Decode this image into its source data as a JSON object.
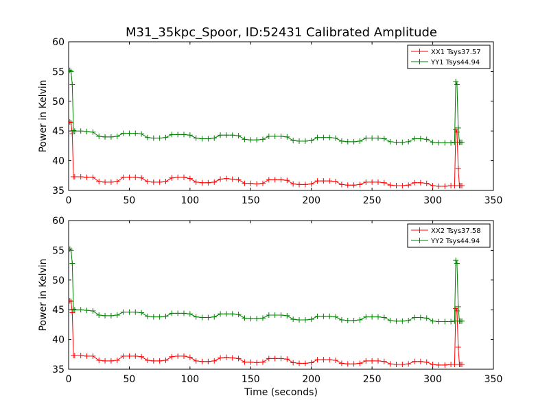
{
  "figure": {
    "title": "M31_35kpc_Spoor, ID:52431 Calibrated Amplitude"
  },
  "colors": {
    "xx": "#ff0000",
    "yy": "#008000",
    "axes": "#000000",
    "background": "#ffffff"
  },
  "chart_data": [
    {
      "type": "line",
      "title": "M31_35kpc_Spoor, ID:52431 Calibrated Amplitude",
      "xlabel": "",
      "ylabel": "Power in Kelvin",
      "xlim": [
        0,
        350
      ],
      "ylim": [
        35,
        60
      ],
      "x_ticks": [
        0,
        50,
        100,
        150,
        200,
        250,
        300,
        350
      ],
      "y_ticks": [
        35,
        40,
        45,
        50,
        55,
        60
      ],
      "grid": false,
      "legend_position": "top-right",
      "marker": "+",
      "series": [
        {
          "name": "XX1 Tsys37.57",
          "color": "#ff0000",
          "x": [
            1,
            2,
            3,
            4,
            5,
            10,
            15,
            20,
            25,
            30,
            35,
            40,
            45,
            50,
            55,
            60,
            65,
            70,
            75,
            80,
            85,
            90,
            95,
            100,
            105,
            110,
            115,
            120,
            125,
            130,
            135,
            140,
            145,
            150,
            155,
            160,
            165,
            170,
            175,
            180,
            185,
            190,
            195,
            200,
            205,
            210,
            215,
            220,
            225,
            230,
            235,
            240,
            245,
            250,
            255,
            260,
            265,
            270,
            275,
            280,
            285,
            290,
            295,
            300,
            305,
            310,
            315,
            318,
            319,
            320,
            321,
            322,
            323,
            324
          ],
          "y": [
            46.5,
            46.4,
            44.5,
            37.3,
            37.3,
            37.3,
            37.2,
            37.2,
            36.5,
            36.4,
            36.4,
            36.5,
            37.2,
            37.2,
            37.2,
            37.1,
            36.5,
            36.4,
            36.4,
            36.5,
            37.1,
            37.2,
            37.2,
            37.0,
            36.4,
            36.3,
            36.3,
            36.4,
            36.9,
            37.0,
            36.9,
            36.8,
            36.2,
            36.2,
            36.1,
            36.2,
            36.8,
            36.8,
            36.8,
            36.7,
            36.1,
            36.0,
            36.0,
            36.1,
            36.6,
            36.6,
            36.6,
            36.5,
            36.0,
            35.9,
            35.9,
            36.0,
            36.4,
            36.4,
            36.4,
            36.3,
            35.9,
            35.8,
            35.8,
            35.9,
            36.3,
            36.3,
            36.2,
            35.8,
            35.7,
            35.7,
            35.8,
            35.8,
            45.2,
            44.8,
            38.7,
            35.8,
            35.8,
            35.8
          ]
        },
        {
          "name": "YY1 Tsys44.94",
          "color": "#008000",
          "x": [
            1,
            2,
            3,
            4,
            5,
            10,
            15,
            20,
            25,
            30,
            35,
            40,
            45,
            50,
            55,
            60,
            65,
            70,
            75,
            80,
            85,
            90,
            95,
            100,
            105,
            110,
            115,
            120,
            125,
            130,
            135,
            140,
            145,
            150,
            155,
            160,
            165,
            170,
            175,
            180,
            185,
            190,
            195,
            200,
            205,
            210,
            215,
            220,
            225,
            230,
            235,
            240,
            245,
            250,
            255,
            260,
            265,
            270,
            275,
            280,
            285,
            290,
            295,
            300,
            305,
            310,
            315,
            318,
            319,
            320,
            321,
            322,
            323,
            324
          ],
          "y": [
            55.2,
            55.0,
            52.8,
            45.1,
            45.0,
            45.0,
            44.9,
            44.8,
            44.1,
            44.0,
            44.0,
            44.1,
            44.6,
            44.6,
            44.6,
            44.5,
            43.9,
            43.8,
            43.8,
            43.9,
            44.4,
            44.4,
            44.4,
            44.3,
            43.8,
            43.7,
            43.7,
            43.8,
            44.3,
            44.3,
            44.3,
            44.2,
            43.6,
            43.5,
            43.5,
            43.6,
            44.1,
            44.1,
            44.1,
            44.0,
            43.4,
            43.3,
            43.3,
            43.4,
            43.9,
            43.9,
            43.9,
            43.8,
            43.3,
            43.2,
            43.2,
            43.3,
            43.8,
            43.8,
            43.8,
            43.7,
            43.2,
            43.1,
            43.1,
            43.2,
            43.7,
            43.7,
            43.6,
            43.1,
            43.0,
            43.0,
            43.0,
            43.1,
            53.3,
            52.8,
            45.5,
            43.1,
            43.1,
            43.1
          ]
        }
      ]
    },
    {
      "type": "line",
      "title": "",
      "xlabel": "Time (seconds)",
      "ylabel": "Power in Kelvin",
      "xlim": [
        0,
        350
      ],
      "ylim": [
        35,
        60
      ],
      "x_ticks": [
        0,
        50,
        100,
        150,
        200,
        250,
        300,
        350
      ],
      "y_ticks": [
        35,
        40,
        45,
        50,
        55,
        60
      ],
      "grid": false,
      "legend_position": "top-right",
      "marker": "+",
      "series": [
        {
          "name": "XX2 Tsys37.58",
          "color": "#ff0000",
          "x": [
            1,
            2,
            3,
            4,
            5,
            10,
            15,
            20,
            25,
            30,
            35,
            40,
            45,
            50,
            55,
            60,
            65,
            70,
            75,
            80,
            85,
            90,
            95,
            100,
            105,
            110,
            115,
            120,
            125,
            130,
            135,
            140,
            145,
            150,
            155,
            160,
            165,
            170,
            175,
            180,
            185,
            190,
            195,
            200,
            205,
            210,
            215,
            220,
            225,
            230,
            235,
            240,
            245,
            250,
            255,
            260,
            265,
            270,
            275,
            280,
            285,
            290,
            295,
            300,
            305,
            310,
            315,
            318,
            319,
            320,
            321,
            322,
            323,
            324
          ],
          "y": [
            46.5,
            46.4,
            44.5,
            37.3,
            37.3,
            37.3,
            37.2,
            37.2,
            36.5,
            36.4,
            36.4,
            36.5,
            37.2,
            37.2,
            37.2,
            37.1,
            36.5,
            36.4,
            36.4,
            36.5,
            37.1,
            37.2,
            37.2,
            37.0,
            36.4,
            36.3,
            36.3,
            36.4,
            36.9,
            37.0,
            36.9,
            36.8,
            36.2,
            36.2,
            36.1,
            36.2,
            36.8,
            36.8,
            36.8,
            36.7,
            36.1,
            36.0,
            36.0,
            36.1,
            36.6,
            36.6,
            36.6,
            36.5,
            36.0,
            35.9,
            35.9,
            36.0,
            36.4,
            36.4,
            36.4,
            36.3,
            35.9,
            35.8,
            35.8,
            35.9,
            36.3,
            36.3,
            36.2,
            35.8,
            35.7,
            35.7,
            35.8,
            35.8,
            45.2,
            44.8,
            38.7,
            35.8,
            35.8,
            35.8
          ]
        },
        {
          "name": "YY2 Tsys44.94",
          "color": "#008000",
          "x": [
            1,
            2,
            3,
            4,
            5,
            10,
            15,
            20,
            25,
            30,
            35,
            40,
            45,
            50,
            55,
            60,
            65,
            70,
            75,
            80,
            85,
            90,
            95,
            100,
            105,
            110,
            115,
            120,
            125,
            130,
            135,
            140,
            145,
            150,
            155,
            160,
            165,
            170,
            175,
            180,
            185,
            190,
            195,
            200,
            205,
            210,
            215,
            220,
            225,
            230,
            235,
            240,
            245,
            250,
            255,
            260,
            265,
            270,
            275,
            280,
            285,
            290,
            295,
            300,
            305,
            310,
            315,
            318,
            319,
            320,
            321,
            322,
            323,
            324
          ],
          "y": [
            55.2,
            55.0,
            52.8,
            45.1,
            45.0,
            45.0,
            44.9,
            44.8,
            44.1,
            44.0,
            44.0,
            44.1,
            44.6,
            44.6,
            44.6,
            44.5,
            43.9,
            43.8,
            43.8,
            43.9,
            44.4,
            44.4,
            44.4,
            44.3,
            43.8,
            43.7,
            43.7,
            43.8,
            44.3,
            44.3,
            44.3,
            44.2,
            43.6,
            43.5,
            43.5,
            43.6,
            44.1,
            44.1,
            44.1,
            44.0,
            43.4,
            43.3,
            43.3,
            43.4,
            43.9,
            43.9,
            43.9,
            43.8,
            43.3,
            43.2,
            43.2,
            43.3,
            43.8,
            43.8,
            43.8,
            43.7,
            43.2,
            43.1,
            43.1,
            43.2,
            43.7,
            43.7,
            43.6,
            43.1,
            43.0,
            43.0,
            43.0,
            43.1,
            53.3,
            52.8,
            45.5,
            43.1,
            43.1,
            43.1
          ]
        }
      ]
    }
  ]
}
